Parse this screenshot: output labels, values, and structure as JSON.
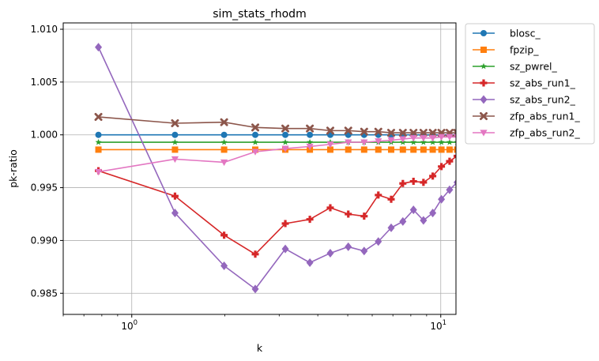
{
  "chart_data": {
    "type": "line",
    "title": "sim_stats_rhodm",
    "xlabel": "k",
    "ylabel": "pk-ratio",
    "xscale": "log",
    "xlim": [
      0.6,
      11.2
    ],
    "ylim": [
      0.983,
      1.0106
    ],
    "grid": true,
    "legend_position": "outside-right",
    "x_ticks": [
      {
        "value": 1,
        "base": "10",
        "exp": "0"
      },
      {
        "value": 10,
        "base": "10",
        "exp": "1"
      }
    ],
    "y_ticks": [
      {
        "value": 0.985,
        "label": "0.985"
      },
      {
        "value": 0.99,
        "label": "0.990"
      },
      {
        "value": 0.995,
        "label": "0.995"
      },
      {
        "value": 1.0,
        "label": "1.000"
      },
      {
        "value": 1.005,
        "label": "1.005"
      },
      {
        "value": 1.01,
        "label": "1.010"
      }
    ],
    "x": [
      0.78,
      1.38,
      1.99,
      2.51,
      3.14,
      3.77,
      4.39,
      5.02,
      5.65,
      6.28,
      6.91,
      7.54,
      8.16,
      8.79,
      9.42,
      10.05,
      10.68,
      11.3
    ],
    "series": [
      {
        "name": "blosc_",
        "color": "#1f77b4",
        "marker": "circle",
        "values": [
          1.0,
          1.0,
          1.0,
          1.0,
          1.0,
          1.0,
          1.0,
          1.0,
          1.0,
          1.0,
          1.0,
          1.0,
          1.0,
          1.0,
          1.0,
          1.0,
          1.0,
          1.0
        ]
      },
      {
        "name": "fpzip_",
        "color": "#ff7f0e",
        "marker": "square",
        "values": [
          0.9986,
          0.9986,
          0.9986,
          0.9986,
          0.9986,
          0.9986,
          0.9986,
          0.9986,
          0.9986,
          0.9986,
          0.9986,
          0.9986,
          0.9986,
          0.9986,
          0.9986,
          0.9986,
          0.9986,
          0.9986
        ]
      },
      {
        "name": "sz_pwrel_",
        "color": "#2ca02c",
        "marker": "star",
        "values": [
          0.9993,
          0.9993,
          0.9993,
          0.9993,
          0.9993,
          0.9993,
          0.9993,
          0.9993,
          0.9993,
          0.9993,
          0.9993,
          0.9993,
          0.9993,
          0.9993,
          0.9993,
          0.9993,
          0.9993,
          0.9993
        ]
      },
      {
        "name": "sz_abs_run1_",
        "color": "#d62728",
        "marker": "plus",
        "values": [
          0.9966,
          0.9942,
          0.9905,
          0.9887,
          0.9916,
          0.992,
          0.9931,
          0.9925,
          0.9923,
          0.9943,
          0.9939,
          0.9954,
          0.9956,
          0.9955,
          0.9961,
          0.997,
          0.9975,
          0.998
        ]
      },
      {
        "name": "sz_abs_run2_",
        "color": "#9467bd",
        "marker": "diamond",
        "values": [
          1.0083,
          0.9926,
          0.9876,
          0.9854,
          0.9892,
          0.9879,
          0.9888,
          0.9894,
          0.989,
          0.9899,
          0.9912,
          0.9918,
          0.9929,
          0.9919,
          0.9926,
          0.9939,
          0.9948,
          0.9955
        ]
      },
      {
        "name": "zfp_abs_run1_",
        "color": "#8c564b",
        "marker": "x",
        "values": [
          1.0017,
          1.0011,
          1.0012,
          1.0007,
          1.0006,
          1.0006,
          1.0004,
          1.0004,
          1.0003,
          1.0003,
          1.0002,
          1.0002,
          1.0002,
          1.0002,
          1.0002,
          1.0002,
          1.0002,
          1.0002
        ]
      },
      {
        "name": "zfp_abs_run2_",
        "color": "#e377c2",
        "marker": "triangle-down",
        "values": [
          0.9965,
          0.9977,
          0.9974,
          0.9984,
          0.9987,
          0.9989,
          0.9991,
          0.9993,
          0.9993,
          0.9994,
          0.9995,
          0.9996,
          0.9997,
          0.9997,
          0.9997,
          0.9998,
          0.9998,
          0.9998
        ]
      }
    ]
  }
}
